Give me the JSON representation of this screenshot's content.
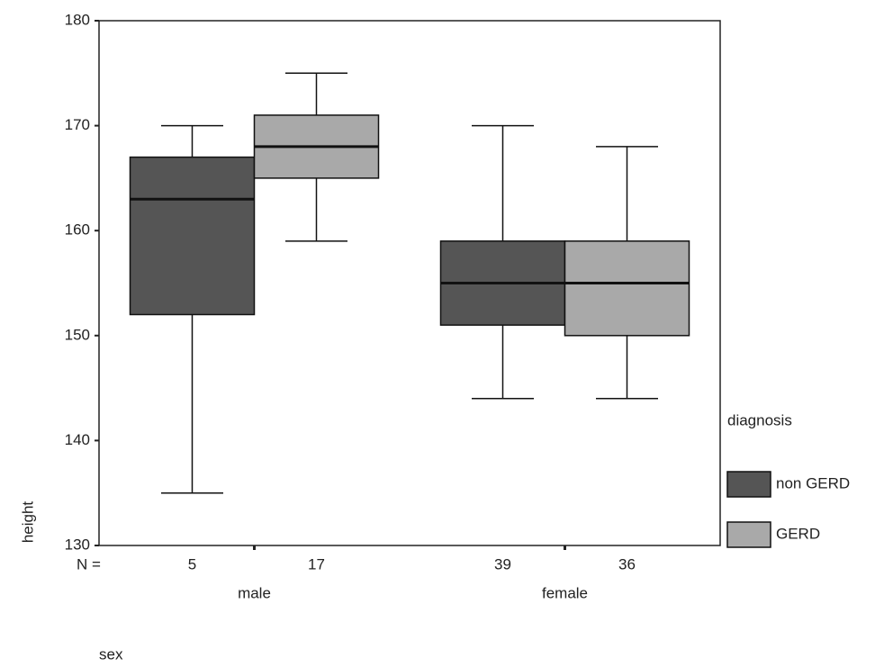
{
  "chart_data": {
    "type": "boxplot",
    "x_label": "sex",
    "y_label": "height",
    "categories": [
      "male",
      "female"
    ],
    "legend_title": "diagnosis",
    "n_label": "N =",
    "series": [
      {
        "name": "non GERD",
        "color": "#555555",
        "min": [
          135,
          144
        ],
        "q1": [
          152,
          151
        ],
        "median": [
          163,
          155
        ],
        "q3": [
          167,
          159
        ],
        "max": [
          170,
          170
        ],
        "n": [
          5,
          39
        ]
      },
      {
        "name": "GERD",
        "color": "#a9a9a9",
        "min": [
          159,
          144
        ],
        "q1": [
          165,
          150
        ],
        "median": [
          168,
          155
        ],
        "q3": [
          171,
          159
        ],
        "max": [
          175,
          168
        ],
        "n": [
          17,
          36
        ]
      }
    ],
    "ylim": [
      130,
      180
    ],
    "yticks": [
      130,
      140,
      150,
      160,
      170,
      180
    ]
  }
}
